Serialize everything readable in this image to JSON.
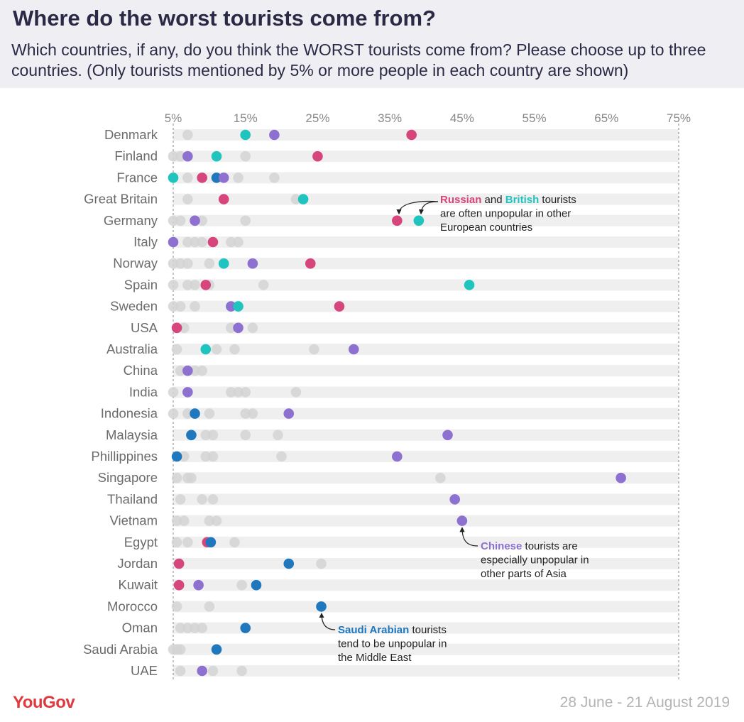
{
  "header": {
    "title": "Where do the worst tourists come from?",
    "subtitle": "Which countries, if any, do you think the WORST tourists come from? Please choose up to three countries. (Only tourists mentioned by 5% or more people in each country are shown)"
  },
  "footer": {
    "logo": "YouGov",
    "date": "28 June - 21 August 2019"
  },
  "colors": {
    "russian": "#d6457b",
    "british": "#1ec4bd",
    "chinese": "#8d70cf",
    "saudi": "#1f77bd",
    "other": "#d3d3d3",
    "band": "#efefef",
    "text": "#6b6b6b"
  },
  "chart_data": {
    "type": "scatter",
    "title": "",
    "xlim": [
      5,
      75
    ],
    "x_ticks": [
      "5%",
      "15%",
      "25%",
      "35%",
      "45%",
      "55%",
      "65%",
      "75%"
    ],
    "x_tick_values": [
      5,
      15,
      25,
      35,
      45,
      55,
      65,
      75
    ],
    "highlight_series": [
      "Russian",
      "British",
      "Chinese",
      "Saudi Arabian"
    ],
    "rows": [
      {
        "country": "Denmark",
        "points": [
          {
            "s": "other",
            "x": 7
          },
          {
            "s": "british",
            "x": 15
          },
          {
            "s": "chinese",
            "x": 19
          },
          {
            "s": "russian",
            "x": 38
          }
        ]
      },
      {
        "country": "Finland",
        "points": [
          {
            "s": "other",
            "x": 5
          },
          {
            "s": "other",
            "x": 6
          },
          {
            "s": "chinese",
            "x": 7
          },
          {
            "s": "british",
            "x": 11
          },
          {
            "s": "other",
            "x": 15
          },
          {
            "s": "russian",
            "x": 25
          }
        ]
      },
      {
        "country": "France",
        "points": [
          {
            "s": "british",
            "x": 5
          },
          {
            "s": "other",
            "x": 7
          },
          {
            "s": "russian",
            "x": 9
          },
          {
            "s": "saudi",
            "x": 11
          },
          {
            "s": "chinese",
            "x": 12
          },
          {
            "s": "other",
            "x": 14
          },
          {
            "s": "other",
            "x": 19
          }
        ]
      },
      {
        "country": "Great Britain",
        "points": [
          {
            "s": "other",
            "x": 7
          },
          {
            "s": "russian",
            "x": 12
          },
          {
            "s": "other",
            "x": 22
          },
          {
            "s": "british",
            "x": 23
          }
        ]
      },
      {
        "country": "Germany",
        "points": [
          {
            "s": "other",
            "x": 5
          },
          {
            "s": "other",
            "x": 6
          },
          {
            "s": "chinese",
            "x": 8
          },
          {
            "s": "other",
            "x": 9
          },
          {
            "s": "other",
            "x": 15
          },
          {
            "s": "russian",
            "x": 36
          },
          {
            "s": "british",
            "x": 39
          }
        ]
      },
      {
        "country": "Italy",
        "points": [
          {
            "s": "chinese",
            "x": 5
          },
          {
            "s": "other",
            "x": 7
          },
          {
            "s": "other",
            "x": 8
          },
          {
            "s": "other",
            "x": 9
          },
          {
            "s": "russian",
            "x": 10.5
          },
          {
            "s": "other",
            "x": 13
          },
          {
            "s": "other",
            "x": 14
          }
        ]
      },
      {
        "country": "Norway",
        "points": [
          {
            "s": "other",
            "x": 5
          },
          {
            "s": "other",
            "x": 6
          },
          {
            "s": "other",
            "x": 7
          },
          {
            "s": "other",
            "x": 10
          },
          {
            "s": "british",
            "x": 12
          },
          {
            "s": "chinese",
            "x": 16
          },
          {
            "s": "russian",
            "x": 24
          }
        ]
      },
      {
        "country": "Spain",
        "points": [
          {
            "s": "other",
            "x": 5
          },
          {
            "s": "other",
            "x": 7
          },
          {
            "s": "other",
            "x": 8
          },
          {
            "s": "russian",
            "x": 9.5
          },
          {
            "s": "other",
            "x": 10
          },
          {
            "s": "other",
            "x": 17.5
          },
          {
            "s": "british",
            "x": 46
          }
        ]
      },
      {
        "country": "Sweden",
        "points": [
          {
            "s": "other",
            "x": 5
          },
          {
            "s": "other",
            "x": 6
          },
          {
            "s": "other",
            "x": 8
          },
          {
            "s": "chinese",
            "x": 13
          },
          {
            "s": "british",
            "x": 14
          },
          {
            "s": "russian",
            "x": 28
          }
        ]
      },
      {
        "country": "USA",
        "points": [
          {
            "s": "russian",
            "x": 5.5
          },
          {
            "s": "other",
            "x": 6.5
          },
          {
            "s": "other",
            "x": 13
          },
          {
            "s": "chinese",
            "x": 14
          },
          {
            "s": "other",
            "x": 16
          }
        ]
      },
      {
        "country": "Australia",
        "points": [
          {
            "s": "other",
            "x": 5.5
          },
          {
            "s": "british",
            "x": 9.5
          },
          {
            "s": "other",
            "x": 11
          },
          {
            "s": "other",
            "x": 13.5
          },
          {
            "s": "other",
            "x": 24.5
          },
          {
            "s": "chinese",
            "x": 30
          }
        ]
      },
      {
        "country": "China",
        "points": [
          {
            "s": "other",
            "x": 6
          },
          {
            "s": "chinese",
            "x": 7
          },
          {
            "s": "other",
            "x": 8
          },
          {
            "s": "other",
            "x": 9
          }
        ]
      },
      {
        "country": "India",
        "points": [
          {
            "s": "other",
            "x": 5
          },
          {
            "s": "chinese",
            "x": 7
          },
          {
            "s": "other",
            "x": 13
          },
          {
            "s": "other",
            "x": 14
          },
          {
            "s": "other",
            "x": 15
          },
          {
            "s": "other",
            "x": 22
          }
        ]
      },
      {
        "country": "Indonesia",
        "points": [
          {
            "s": "other",
            "x": 5
          },
          {
            "s": "other",
            "x": 7
          },
          {
            "s": "saudi",
            "x": 8
          },
          {
            "s": "other",
            "x": 10
          },
          {
            "s": "other",
            "x": 15
          },
          {
            "s": "other",
            "x": 16
          },
          {
            "s": "chinese",
            "x": 21
          }
        ]
      },
      {
        "country": "Malaysia",
        "points": [
          {
            "s": "saudi",
            "x": 7.5
          },
          {
            "s": "other",
            "x": 9.5
          },
          {
            "s": "other",
            "x": 10.5
          },
          {
            "s": "other",
            "x": 15
          },
          {
            "s": "other",
            "x": 19.5
          },
          {
            "s": "chinese",
            "x": 43
          }
        ]
      },
      {
        "country": "Phillippines",
        "points": [
          {
            "s": "saudi",
            "x": 5.5
          },
          {
            "s": "other",
            "x": 6.5
          },
          {
            "s": "other",
            "x": 9.5
          },
          {
            "s": "other",
            "x": 10.5
          },
          {
            "s": "other",
            "x": 20
          },
          {
            "s": "chinese",
            "x": 36
          }
        ]
      },
      {
        "country": "Singapore",
        "points": [
          {
            "s": "other",
            "x": 5.5
          },
          {
            "s": "other",
            "x": 7
          },
          {
            "s": "other",
            "x": 7.5
          },
          {
            "s": "other",
            "x": 42
          },
          {
            "s": "chinese",
            "x": 67
          }
        ]
      },
      {
        "country": "Thailand",
        "points": [
          {
            "s": "other",
            "x": 6
          },
          {
            "s": "other",
            "x": 9
          },
          {
            "s": "other",
            "x": 10.5
          },
          {
            "s": "chinese",
            "x": 44
          }
        ]
      },
      {
        "country": "Vietnam",
        "points": [
          {
            "s": "other",
            "x": 5.5
          },
          {
            "s": "other",
            "x": 6.5
          },
          {
            "s": "other",
            "x": 10
          },
          {
            "s": "other",
            "x": 11
          },
          {
            "s": "chinese",
            "x": 45
          }
        ]
      },
      {
        "country": "Egypt",
        "points": [
          {
            "s": "other",
            "x": 5.5
          },
          {
            "s": "other",
            "x": 7
          },
          {
            "s": "russian",
            "x": 9.7
          },
          {
            "s": "saudi",
            "x": 10.2
          },
          {
            "s": "other",
            "x": 13.5
          }
        ]
      },
      {
        "country": "Jordan",
        "points": [
          {
            "s": "russian",
            "x": 5.8
          },
          {
            "s": "saudi",
            "x": 21
          },
          {
            "s": "other",
            "x": 25.5
          }
        ]
      },
      {
        "country": "Kuwait",
        "points": [
          {
            "s": "russian",
            "x": 5.8
          },
          {
            "s": "chinese",
            "x": 8.5
          },
          {
            "s": "other",
            "x": 14.5
          },
          {
            "s": "saudi",
            "x": 16.5
          }
        ]
      },
      {
        "country": "Morocco",
        "points": [
          {
            "s": "other",
            "x": 5.5
          },
          {
            "s": "other",
            "x": 10
          },
          {
            "s": "saudi",
            "x": 25.5
          }
        ]
      },
      {
        "country": "Oman",
        "points": [
          {
            "s": "other",
            "x": 6
          },
          {
            "s": "other",
            "x": 7
          },
          {
            "s": "other",
            "x": 8
          },
          {
            "s": "other",
            "x": 9
          },
          {
            "s": "saudi",
            "x": 15
          }
        ]
      },
      {
        "country": "Saudi Arabia",
        "points": [
          {
            "s": "other",
            "x": 5
          },
          {
            "s": "other",
            "x": 5.5
          },
          {
            "s": "other",
            "x": 6
          },
          {
            "s": "saudi",
            "x": 11
          }
        ]
      },
      {
        "country": "UAE",
        "points": [
          {
            "s": "other",
            "x": 6
          },
          {
            "s": "chinese",
            "x": 9
          },
          {
            "s": "other",
            "x": 10.5
          },
          {
            "s": "other",
            "x": 14.5
          }
        ]
      }
    ],
    "annotations": [
      {
        "highlight": "Russian",
        "text1": " and ",
        "highlight2": "British",
        "text2": " tourists",
        "line2": "are often unpopular in other",
        "line3": "European countries"
      },
      {
        "highlight": "Chinese",
        "text1": " tourists are",
        "line2": "especially unpopular in",
        "line3": "other parts of Asia"
      },
      {
        "highlight": "Saudi Arabian",
        "text1": " tourists",
        "line2": "tend to be unpopular in",
        "line3": "the Middle East"
      }
    ]
  }
}
